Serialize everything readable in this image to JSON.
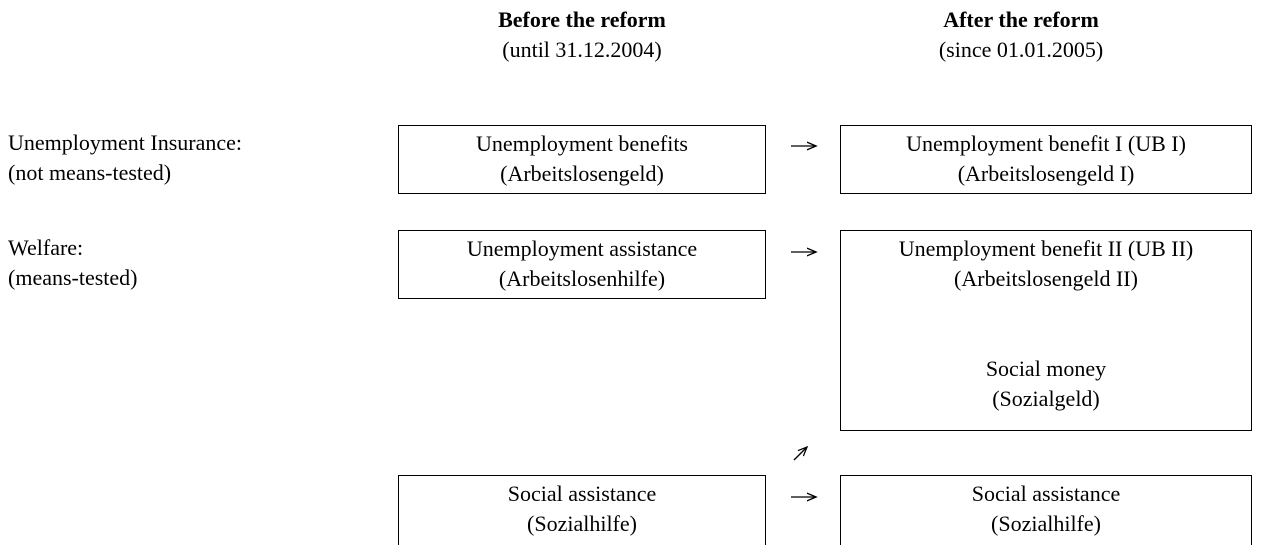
{
  "columns": [
    {
      "title": "Before the reform",
      "subtitle": "(until 31.12.2004)"
    },
    {
      "title": "After the reform",
      "subtitle": "(since 01.01.2005)"
    }
  ],
  "rows": [
    {
      "label": "Unemployment Insurance:",
      "sublabel": "(not means-tested)"
    },
    {
      "label": "Welfare:",
      "sublabel": "(means-tested)"
    }
  ],
  "boxes": [
    {
      "lines": [
        "Unemployment benefits",
        "(Arbeitslosengeld)"
      ]
    },
    {
      "lines": [
        "Unemployment benefit I (UB I)",
        "(Arbeitslosengeld I)"
      ]
    },
    {
      "lines": [
        "Unemployment assistance",
        "(Arbeitslosenhilfe)"
      ]
    },
    {
      "lines": [
        "Unemployment benefit II (UB II)",
        "(Arbeitslosengeld II)",
        "Social money",
        "(Sozialgeld)"
      ]
    },
    {
      "lines": [
        "Social assistance",
        "(Sozialhilfe)"
      ]
    },
    {
      "lines": [
        "Social assistance",
        "(Sozialhilfe)"
      ]
    }
  ]
}
